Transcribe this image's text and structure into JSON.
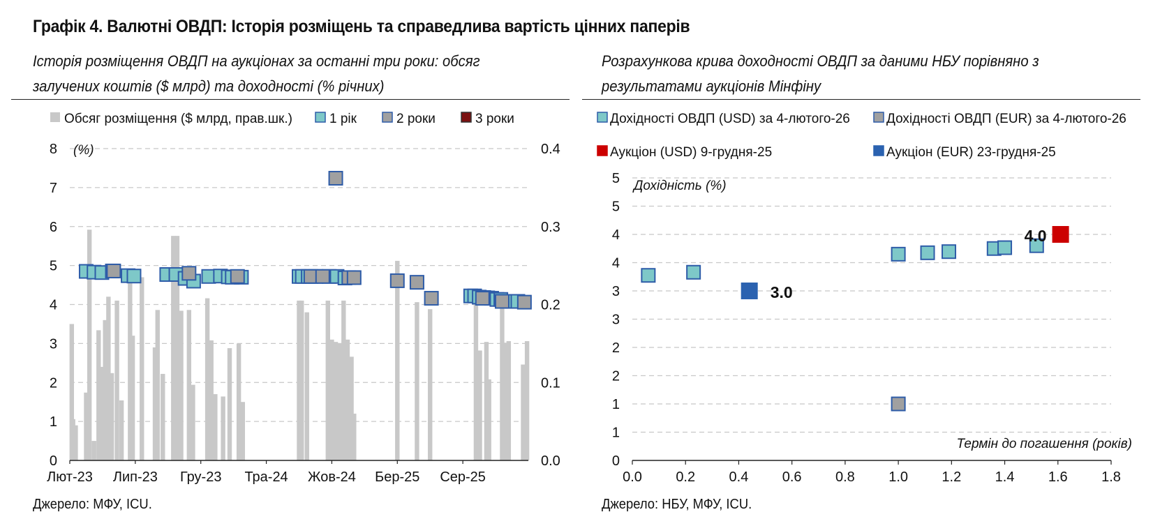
{
  "title": "Графік 4. Валютні ОВДП: Історія розміщень та справедлива вартість цінних паперів",
  "left_panel": {
    "subtitle": "Історія розміщення ОВДП на аукціонах за останні три роки: обсяг залучених коштів ($ млрд) та доходності (% річних)",
    "source": "Джерело: МФУ, ICU."
  },
  "right_panel": {
    "subtitle": "Розрахункова крива доходності ОВДП за даними НБУ порівняно з результатами аукціонів Мінфіну",
    "source": "Джерело: НБУ, МФУ, ICU."
  },
  "colors": {
    "bar": "#c8c8c8",
    "one_year": "#7ec8c8",
    "two_year": "#a0a0a0",
    "three_year": "#7b1010",
    "marker_border": "#2e5ca8",
    "usd_auction": "#cc0000",
    "eur_auction": "#2b62b0",
    "grid": "#c8c8c8"
  },
  "chart_data": [
    {
      "type": "bar+scatter",
      "legend": [
        "Обсяг розміщення ($ млрд, прав.шк.)",
        "1 рік",
        "2 роки",
        "3 роки"
      ],
      "ylabel_left": "(%)",
      "ylim_left": [
        0,
        8
      ],
      "yticks_left": [
        "0",
        "1",
        "2",
        "3",
        "4",
        "5",
        "6",
        "7",
        "8"
      ],
      "ylim_right": [
        0,
        0.4
      ],
      "yticks_right": [
        "0.0",
        "0.1",
        "0.2",
        "0.3",
        "0.4"
      ],
      "xlim_months": [
        0,
        35
      ],
      "xticks": [
        {
          "label": "Лют-23",
          "m": 0
        },
        {
          "label": "Лип-23",
          "m": 5
        },
        {
          "label": "Гру-23",
          "m": 10
        },
        {
          "label": "Тра-24",
          "m": 15
        },
        {
          "label": "Жов-24",
          "m": 20
        },
        {
          "label": "Бер-25",
          "m": 25
        },
        {
          "label": "Сер-25",
          "m": 30
        }
      ],
      "volume_bars_usd_bn": [
        [
          0.15,
          0.175
        ],
        [
          0.25,
          0.053
        ],
        [
          0.45,
          0.045
        ],
        [
          1.25,
          0.087
        ],
        [
          1.5,
          0.296
        ],
        [
          1.85,
          0.025
        ],
        [
          2.2,
          0.167
        ],
        [
          2.45,
          0.12
        ],
        [
          2.7,
          0.18
        ],
        [
          2.95,
          0.21
        ],
        [
          3.2,
          0.112
        ],
        [
          3.6,
          0.205
        ],
        [
          3.95,
          0.077
        ],
        [
          4.6,
          0.23
        ],
        [
          4.8,
          0.16
        ],
        [
          5.5,
          0.235
        ],
        [
          6.5,
          0.145
        ],
        [
          6.7,
          0.193
        ],
        [
          7.1,
          0.111
        ],
        [
          7.9,
          0.288
        ],
        [
          8.2,
          0.288
        ],
        [
          8.5,
          0.192
        ],
        [
          9.1,
          0.193
        ],
        [
          9.4,
          0.097
        ],
        [
          10.5,
          0.208
        ],
        [
          10.8,
          0.154
        ],
        [
          11.1,
          0.085
        ],
        [
          11.7,
          0.082
        ],
        [
          12.2,
          0.144
        ],
        [
          12.9,
          0.15
        ],
        [
          13.2,
          0.075
        ],
        [
          17.5,
          0.205
        ],
        [
          17.7,
          0.205
        ],
        [
          18.1,
          0.19
        ],
        [
          19.7,
          0.205
        ],
        [
          20.0,
          0.155
        ],
        [
          20.3,
          0.152
        ],
        [
          20.6,
          0.15
        ],
        [
          20.9,
          0.205
        ],
        [
          21.2,
          0.155
        ],
        [
          21.5,
          0.133
        ],
        [
          21.7,
          0.06
        ],
        [
          25.0,
          0.256
        ],
        [
          26.5,
          0.203
        ],
        [
          27.5,
          0.194
        ],
        [
          31.0,
          0.205
        ],
        [
          31.3,
          0.141
        ],
        [
          31.8,
          0.152
        ],
        [
          32.0,
          0.104
        ],
        [
          33.0,
          0.201
        ],
        [
          33.3,
          0.151
        ],
        [
          33.5,
          0.153
        ],
        [
          34.6,
          0.123
        ],
        [
          34.9,
          0.153
        ]
      ],
      "series": [
        {
          "name": "1 рік",
          "points": [
            [
              1.25,
              4.85
            ],
            [
              1.85,
              4.83
            ],
            [
              2.45,
              4.82
            ],
            [
              3.25,
              4.86
            ],
            [
              4.45,
              4.74
            ],
            [
              4.9,
              4.73
            ],
            [
              7.4,
              4.77
            ],
            [
              8.1,
              4.77
            ],
            [
              8.8,
              4.67
            ],
            [
              9.45,
              4.6
            ],
            [
              10.6,
              4.72
            ],
            [
              11.5,
              4.73
            ],
            [
              12.1,
              4.71
            ],
            [
              12.4,
              4.7
            ],
            [
              13.1,
              4.7
            ],
            [
              17.5,
              4.72
            ],
            [
              17.75,
              4.72
            ],
            [
              18.2,
              4.72
            ],
            [
              18.8,
              4.72
            ],
            [
              19.8,
              4.72
            ],
            [
              20.4,
              4.72
            ],
            [
              21.0,
              4.68
            ],
            [
              30.6,
              4.22
            ],
            [
              30.9,
              4.22
            ],
            [
              31.25,
              4.19
            ],
            [
              31.6,
              4.18
            ],
            [
              31.9,
              4.17
            ],
            [
              32.2,
              4.16
            ],
            [
              32.6,
              4.13
            ],
            [
              32.9,
              4.13
            ],
            [
              33.8,
              4.08
            ],
            [
              34.2,
              4.08
            ]
          ]
        },
        {
          "name": "2 роки",
          "points": [
            [
              3.35,
              4.86
            ],
            [
              9.1,
              4.8
            ],
            [
              12.8,
              4.72
            ],
            [
              18.4,
              4.72
            ],
            [
              19.3,
              4.72
            ],
            [
              20.3,
              7.24
            ],
            [
              21.3,
              4.69
            ],
            [
              21.7,
              4.69
            ],
            [
              25.0,
              4.61
            ],
            [
              26.5,
              4.57
            ],
            [
              27.6,
              4.16
            ],
            [
              31.5,
              4.16
            ],
            [
              33.0,
              4.08
            ],
            [
              34.7,
              4.06
            ]
          ]
        },
        {
          "name": "3 роки",
          "points": []
        }
      ]
    },
    {
      "type": "scatter",
      "legend": [
        "Дохідності ОВДП (USD) за 4-лютого-26",
        "Дохідності ОВДП (EUR) за 4-лютого-26",
        "Аукціон (USD) 9-грудня-25",
        "Аукціон (EUR) 23-грудня-25"
      ],
      "ylabel": "Дохідність (%)",
      "xlabel": "Термін до погашення (років)",
      "xlim": [
        0,
        1.8
      ],
      "xticks": [
        "0.0",
        "0.2",
        "0.4",
        "0.6",
        "0.8",
        "1.0",
        "1.2",
        "1.4",
        "1.6",
        "1.8"
      ],
      "ylim": [
        0,
        10
      ],
      "yticks": [
        "0",
        "1",
        "1",
        "2",
        "2",
        "3",
        "3",
        "4",
        "4",
        "5",
        "5"
      ],
      "series": [
        {
          "name": "Дохідності ОВДП (USD) за 4-лютого-26",
          "points": [
            [
              0.06,
              6.55
            ],
            [
              0.23,
              6.66
            ],
            [
              1.0,
              7.3
            ],
            [
              1.11,
              7.35
            ],
            [
              1.19,
              7.39
            ],
            [
              1.36,
              7.5
            ],
            [
              1.4,
              7.53
            ],
            [
              1.52,
              7.6
            ]
          ]
        },
        {
          "name": "Дохідності ОВДП (EUR) за 4-лютого-26",
          "points": [
            [
              1.0,
              2.0
            ]
          ]
        },
        {
          "name": "Аукціон (USD) 9-грудня-25",
          "points": [
            [
              1.61,
              8.0
            ]
          ],
          "label": "4.0"
        },
        {
          "name": "Аукціон (EUR) 23-грудня-25",
          "points": [
            [
              0.44,
              6.0
            ]
          ],
          "label": "3.0"
        }
      ]
    }
  ]
}
